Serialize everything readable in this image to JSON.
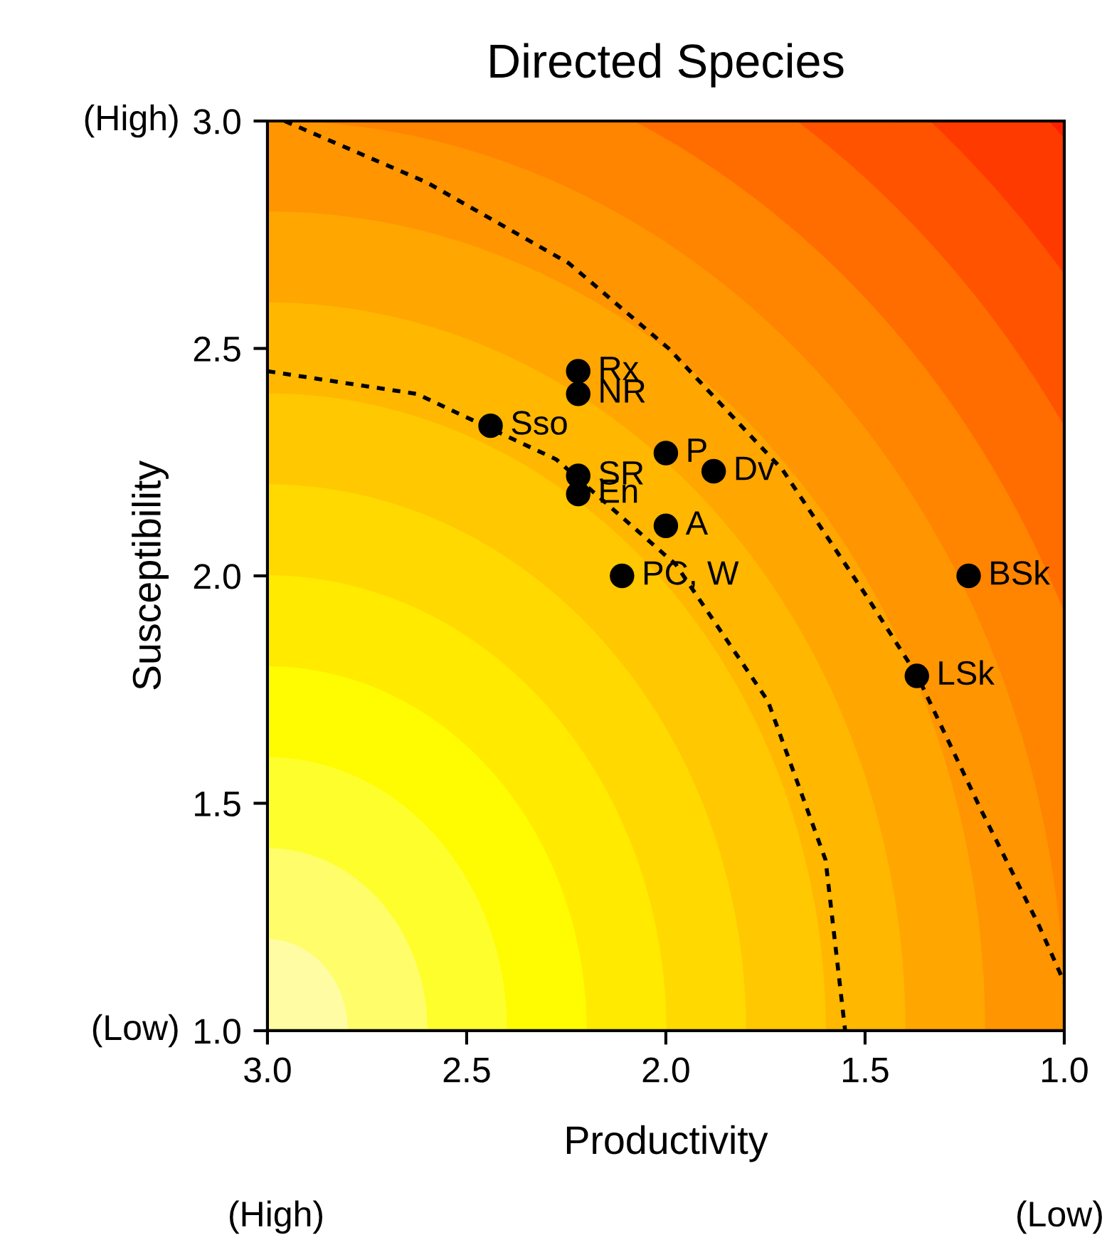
{
  "chart_data": {
    "type": "scatter",
    "title": "Directed Species",
    "xlabel": "Productivity",
    "ylabel": "Susceptibility",
    "xlim": [
      3.0,
      1.0
    ],
    "ylim": [
      1.0,
      3.0
    ],
    "xticks": [
      {
        "value": 3.0,
        "label": "3.0"
      },
      {
        "value": 2.5,
        "label": "2.5"
      },
      {
        "value": 2.0,
        "label": "2.0"
      },
      {
        "value": 1.5,
        "label": "1.5"
      },
      {
        "value": 1.0,
        "label": "1.0"
      }
    ],
    "yticks": [
      {
        "value": 1.0,
        "label": "1.0"
      },
      {
        "value": 1.5,
        "label": "1.5"
      },
      {
        "value": 2.0,
        "label": "2.0"
      },
      {
        "value": 2.5,
        "label": "2.5"
      },
      {
        "value": 3.0,
        "label": "3.0"
      }
    ],
    "grid": false,
    "legend": false,
    "marker": "circle",
    "series": [
      {
        "type": "scatter",
        "color": "#000000",
        "x": [
          2.22,
          2.22,
          2.44,
          2.22,
          2.0,
          1.88,
          2.22,
          2.0,
          2.11,
          1.24,
          1.37
        ],
        "values": [
          2.45,
          2.4,
          2.33,
          2.22,
          2.27,
          2.23,
          2.18,
          2.11,
          2.0,
          2.0,
          1.78
        ]
      },
      {
        "type": "line",
        "marker": "none",
        "line_style": "dotted",
        "color": "#000000",
        "x": [
          3.0,
          2.625,
          2.275,
          1.975,
          1.744,
          1.599,
          1.55
        ],
        "values": [
          2.45,
          2.4,
          2.256,
          2.025,
          1.725,
          1.375,
          1.0
        ]
      },
      {
        "type": "line",
        "marker": "none",
        "line_style": "dotted",
        "color": "#000000",
        "x": [
          2.957,
          2.6,
          2.243,
          1.993,
          1.707,
          1.493,
          1.368,
          1.207,
          1.064,
          1.0
        ],
        "values": [
          3.0,
          2.865,
          2.687,
          2.5,
          2.233,
          1.951,
          1.779,
          1.482,
          1.232,
          1.106
        ]
      }
    ],
    "annotations": [
      {
        "text": "Rx",
        "x": 2.22,
        "y": 2.45
      },
      {
        "text": "NR",
        "x": 2.22,
        "y": 2.4
      },
      {
        "text": "Sso",
        "x": 2.44,
        "y": 2.33
      },
      {
        "text": "SR",
        "x": 2.22,
        "y": 2.22
      },
      {
        "text": "P",
        "x": 2.0,
        "y": 2.27
      },
      {
        "text": "Dv",
        "x": 1.88,
        "y": 2.23
      },
      {
        "text": "En",
        "x": 2.22,
        "y": 2.18
      },
      {
        "text": "A",
        "x": 2.0,
        "y": 2.11
      },
      {
        "text": "PC, W",
        "x": 2.11,
        "y": 2.0
      },
      {
        "text": "BSk",
        "x": 1.24,
        "y": 2.0
      },
      {
        "text": "LSk",
        "x": 1.37,
        "y": 1.78
      },
      "(High)",
      "(Low)",
      "(High)",
      "(Low)"
    ]
  }
}
